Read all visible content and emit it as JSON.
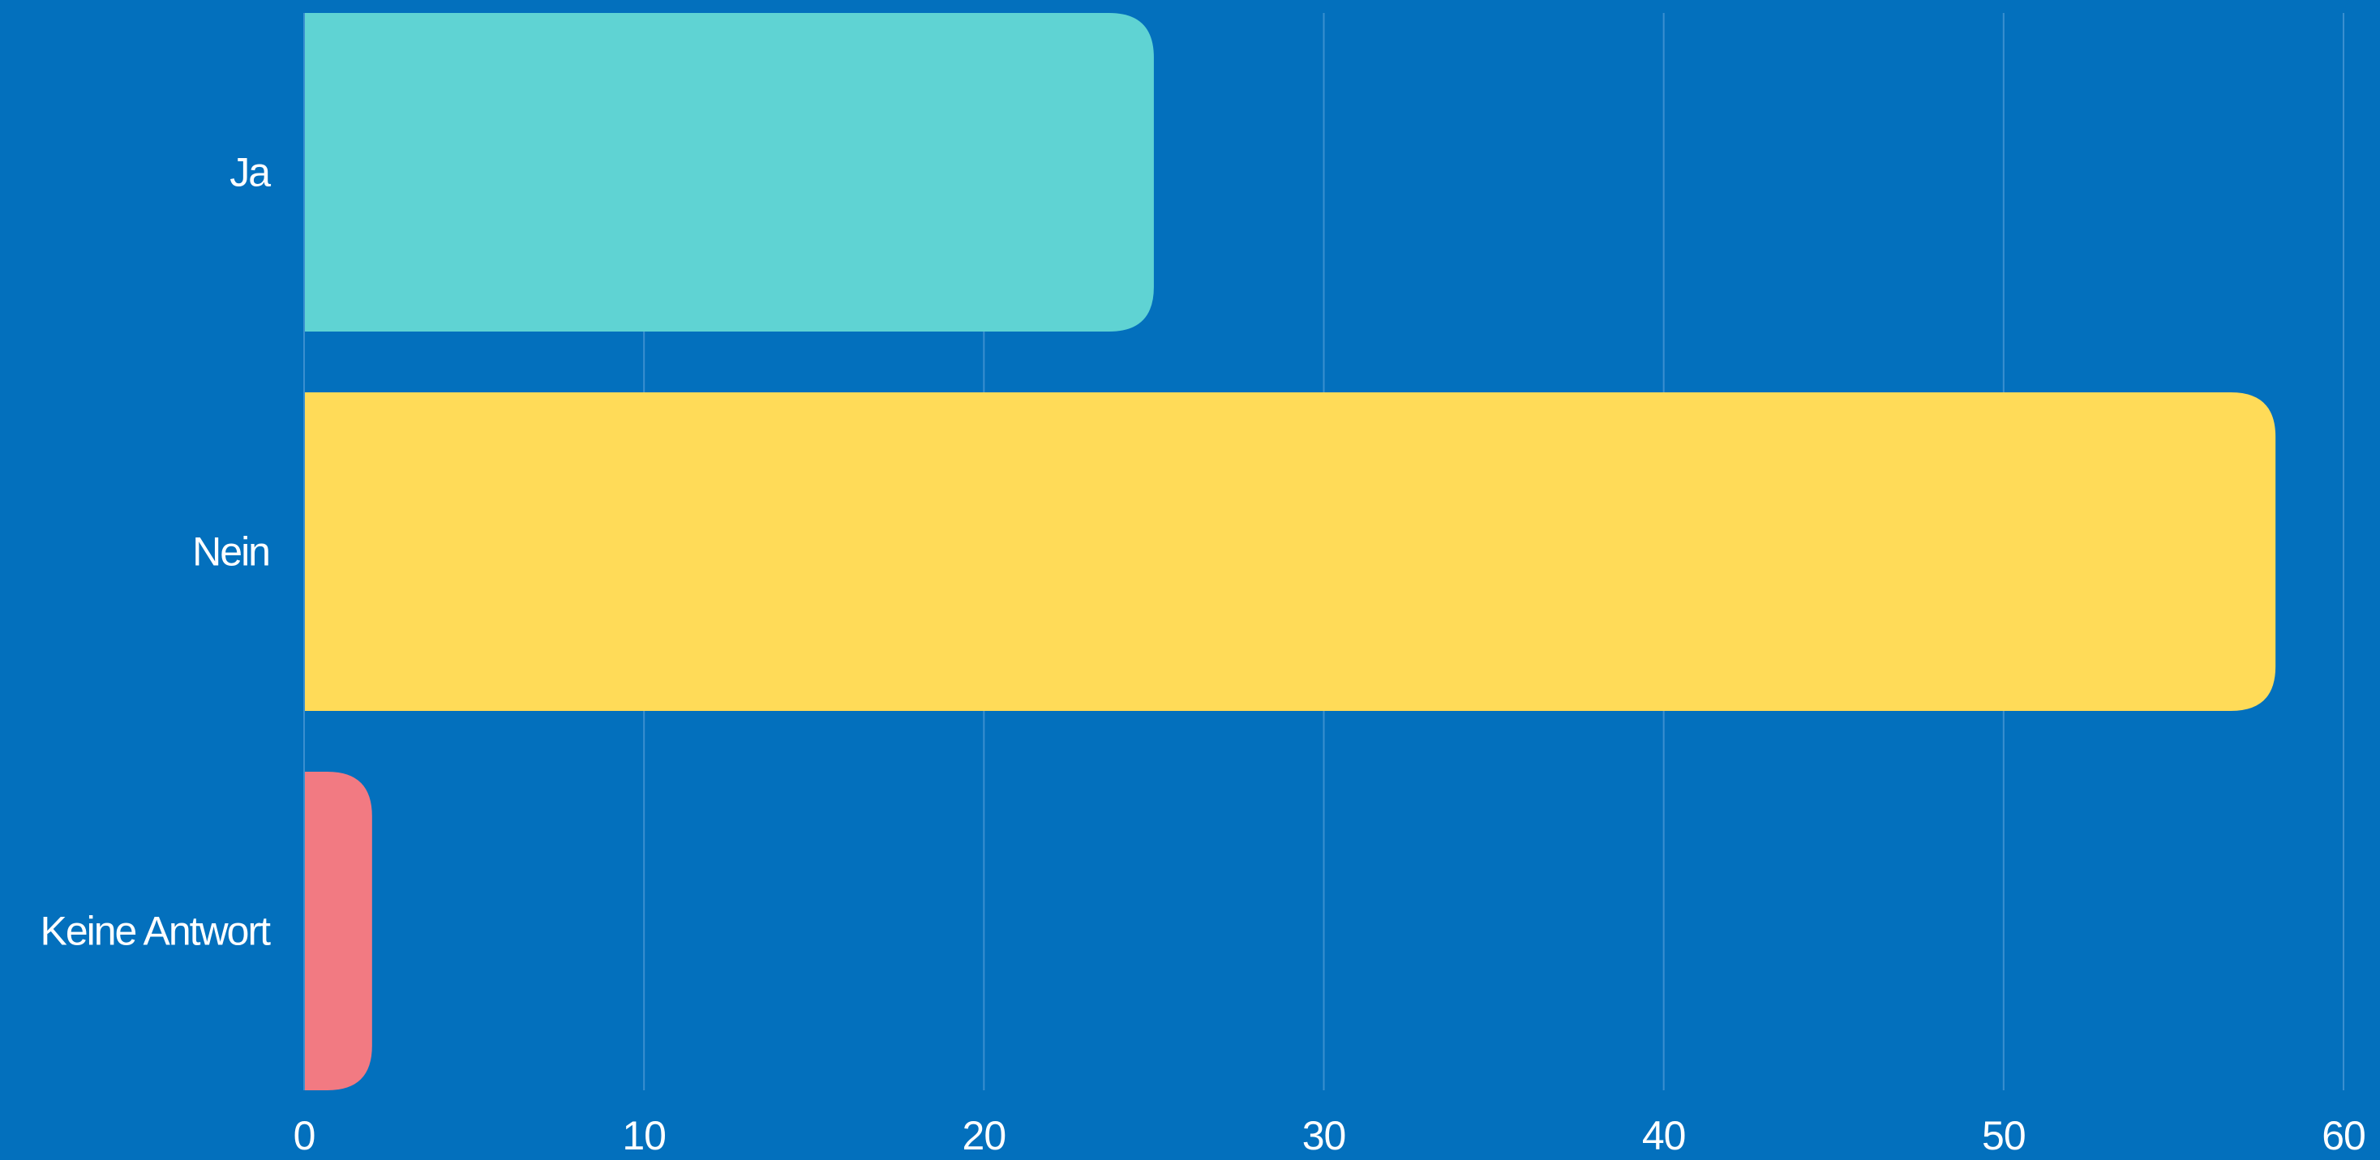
{
  "chart_data": {
    "type": "bar",
    "orientation": "horizontal",
    "categories": [
      "Ja",
      "Nein",
      "Keine Antwort"
    ],
    "values": [
      25,
      58,
      2
    ],
    "xlim": [
      0,
      60
    ],
    "x_ticks": [
      "0",
      "10",
      "20",
      "30",
      "40",
      "50",
      "60"
    ],
    "grid": true,
    "title": "",
    "xlabel": "",
    "ylabel": ""
  },
  "colors": {
    "background": "#0370BD",
    "bars": [
      "#5FD3D3",
      "#FFDB58",
      "#F27A82"
    ],
    "gridline": "#3A8FCF",
    "text": "#FFFFFF"
  }
}
